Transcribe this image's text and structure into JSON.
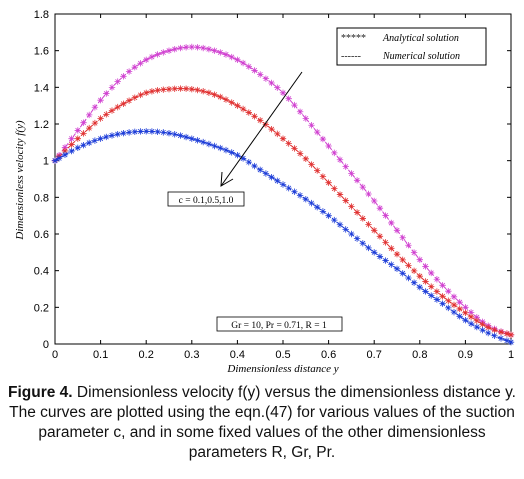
{
  "chart_data": {
    "type": "line",
    "xlabel": "Dimensionless distance  y",
    "ylabel": "Dimensionless velocity  f(y)",
    "xlim": [
      0,
      1
    ],
    "ylim": [
      0,
      1.8
    ],
    "xticks": [
      "0",
      "0.1",
      "0.2",
      "0.3",
      "0.4",
      "0.5",
      "0.6",
      "0.7",
      "0.8",
      "0.9",
      "1"
    ],
    "yticks": [
      "0",
      "0.2",
      "0.4",
      "0.6",
      "0.8",
      "1",
      "1.2",
      "1.4",
      "1.6",
      "1.8"
    ],
    "legend": {
      "position": "top-right",
      "entries": [
        {
          "marker": "*****",
          "label": "Analytical  solution"
        },
        {
          "marker": "------",
          "label": "Numerical  solution"
        }
      ]
    },
    "annotations": [
      {
        "text": "c = 0.1,0.5,1.0"
      },
      {
        "text": "Gr = 10, Pr = 0.71, R = 1"
      }
    ],
    "series": [
      {
        "color": "#d040d0",
        "x": [
          0,
          0.05,
          0.1,
          0.15,
          0.2,
          0.25,
          0.3,
          0.35,
          0.4,
          0.45,
          0.5,
          0.55,
          0.6,
          0.65,
          0.7,
          0.75,
          0.8,
          0.85,
          0.9,
          0.95,
          1.0
        ],
        "values": [
          1.0,
          1.165,
          1.33,
          1.46,
          1.55,
          1.6,
          1.62,
          1.6,
          1.55,
          1.47,
          1.37,
          1.23,
          1.08,
          0.93,
          0.78,
          0.62,
          0.46,
          0.32,
          0.2,
          0.1,
          0.05
        ]
      },
      {
        "color": "#e03030",
        "x": [
          0,
          0.05,
          0.1,
          0.15,
          0.2,
          0.25,
          0.3,
          0.35,
          0.4,
          0.45,
          0.5,
          0.55,
          0.6,
          0.65,
          0.7,
          0.75,
          0.8,
          0.85,
          0.9,
          0.95,
          1.0
        ],
        "values": [
          1.0,
          1.12,
          1.23,
          1.31,
          1.37,
          1.39,
          1.39,
          1.36,
          1.3,
          1.22,
          1.12,
          1.01,
          0.88,
          0.75,
          0.62,
          0.49,
          0.37,
          0.26,
          0.17,
          0.09,
          0.05
        ]
      },
      {
        "color": "#1c3cd8",
        "x": [
          0,
          0.05,
          0.1,
          0.15,
          0.2,
          0.25,
          0.3,
          0.35,
          0.4,
          0.45,
          0.5,
          0.55,
          0.6,
          0.65,
          0.7,
          0.75,
          0.8,
          0.85,
          0.9,
          0.95,
          1.0
        ],
        "values": [
          1.0,
          1.07,
          1.12,
          1.15,
          1.16,
          1.15,
          1.12,
          1.08,
          1.03,
          0.95,
          0.87,
          0.79,
          0.7,
          0.6,
          0.5,
          0.41,
          0.31,
          0.22,
          0.13,
          0.06,
          0.01
        ]
      }
    ]
  },
  "caption": {
    "label": "Figure 4.",
    "text": " Dimensionless velocity f(y) versus the dimensionless distance y. The curves are plotted using the eqn.(47) for various values of the suction parameter c, and in some fixed values of the other dimensionless parameters R, Gr, Pr."
  }
}
